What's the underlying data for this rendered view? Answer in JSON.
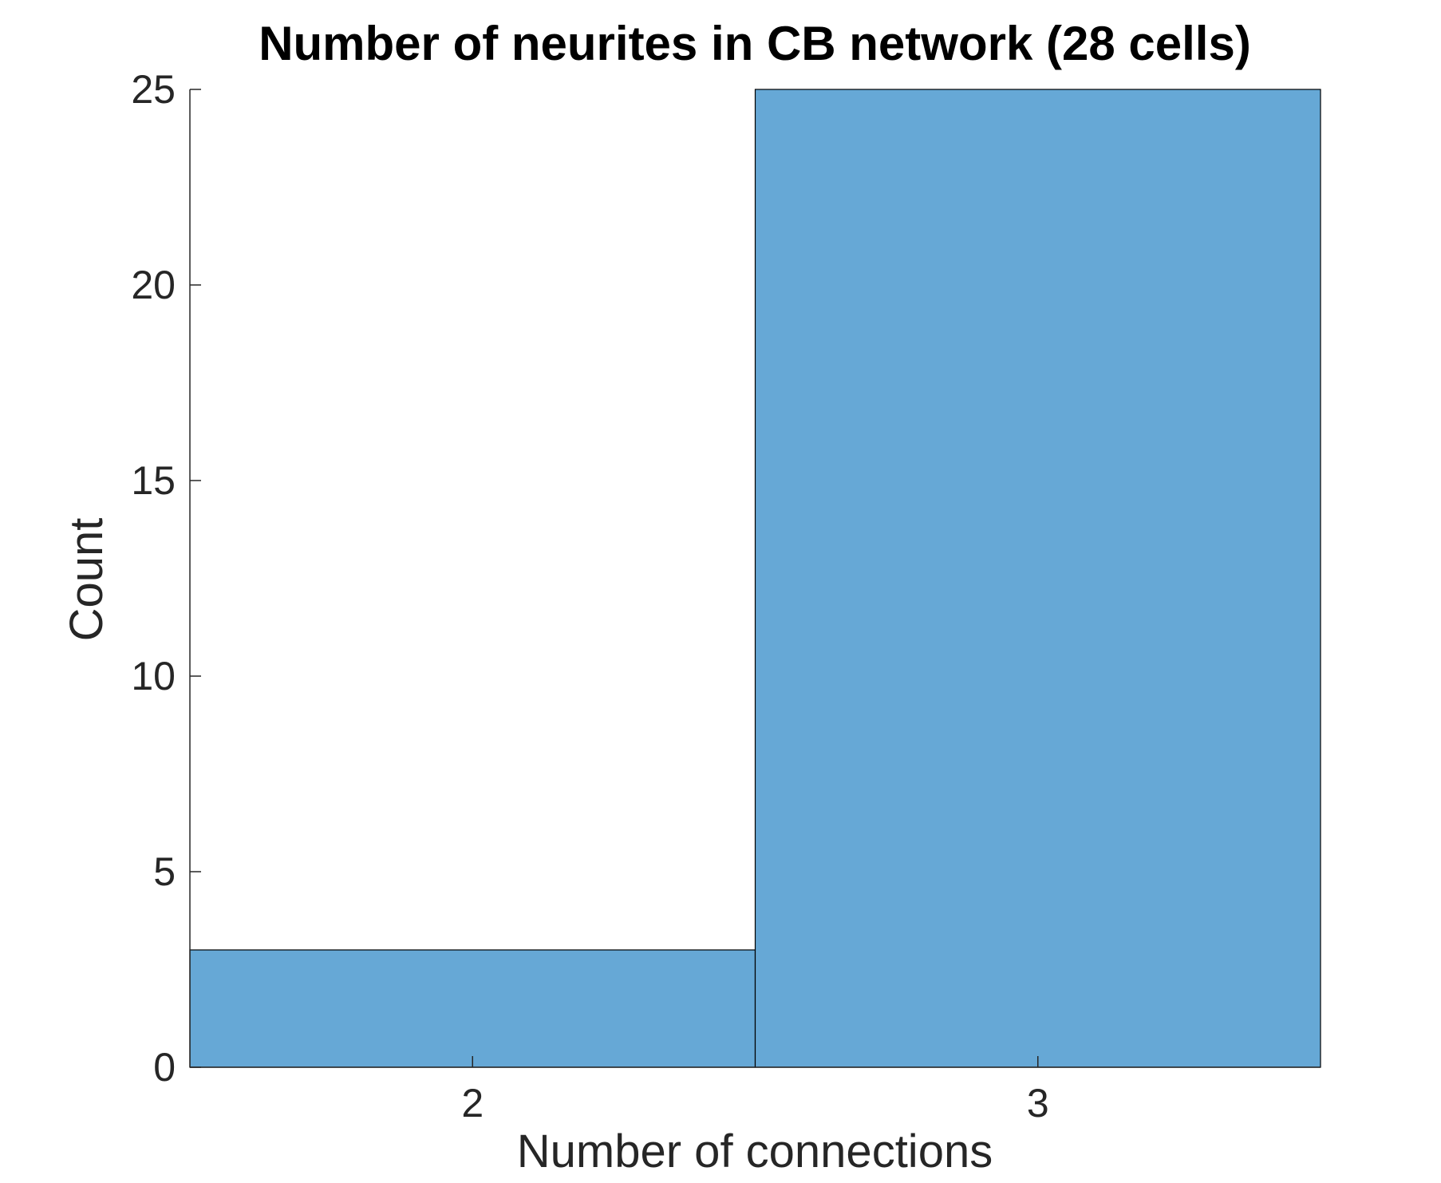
{
  "chart_data": {
    "type": "bar",
    "title": "Number of neurites in CB network (28 cells)",
    "xlabel": "Number of connections",
    "ylabel": "Count",
    "categories": [
      "2",
      "3"
    ],
    "values": [
      3,
      25
    ],
    "ylim": [
      0,
      25
    ],
    "yticks": [
      0,
      5,
      10,
      15,
      20,
      25
    ],
    "grid": false,
    "bar_color": "#66a8d6",
    "edge_color": "#000000",
    "axis_color": "#262626"
  }
}
